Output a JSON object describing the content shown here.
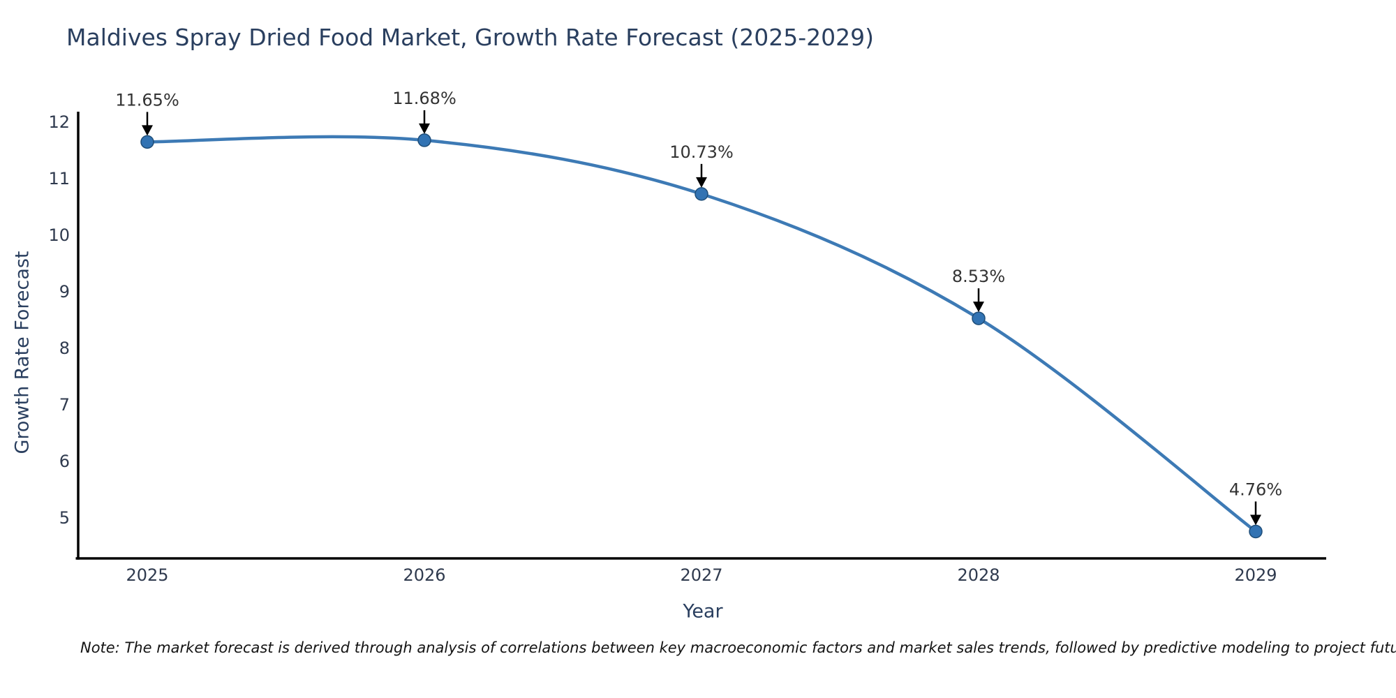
{
  "note": "Note: The market forecast is derived through analysis of correlations between key macroeconomic factors and market sales trends, followed by predictive modeling to project future sales.",
  "chart_data": {
    "type": "line",
    "title": "Maldives Spray Dried Food Market, Growth Rate Forecast (2025-2029)",
    "xlabel": "Year",
    "ylabel": "Growth Rate Forecast",
    "x": [
      2025,
      2026,
      2027,
      2028,
      2029
    ],
    "values": [
      11.65,
      11.68,
      10.73,
      8.53,
      4.76
    ],
    "point_labels": [
      "11.65%",
      "11.68%",
      "10.73%",
      "8.53%",
      "4.76%"
    ],
    "yticks": [
      5,
      6,
      7,
      8,
      9,
      10,
      11,
      12
    ],
    "ylim": [
      4.2,
      12.2
    ],
    "xlim": [
      2024.75,
      2029.25
    ],
    "grid": false,
    "legend_position": "none",
    "annotation_style": "value labels with downward black arrows onto markers",
    "colors": {
      "line": "#3d7ab5",
      "marker": "#3273b3",
      "marker_edge": "#1f4e79",
      "axis": "#000000",
      "title_text": "#2a3f5f",
      "tick_text": "#2f3a4e",
      "annotation_text": "#333333",
      "arrow": "#000000",
      "background": "#ffffff"
    }
  }
}
